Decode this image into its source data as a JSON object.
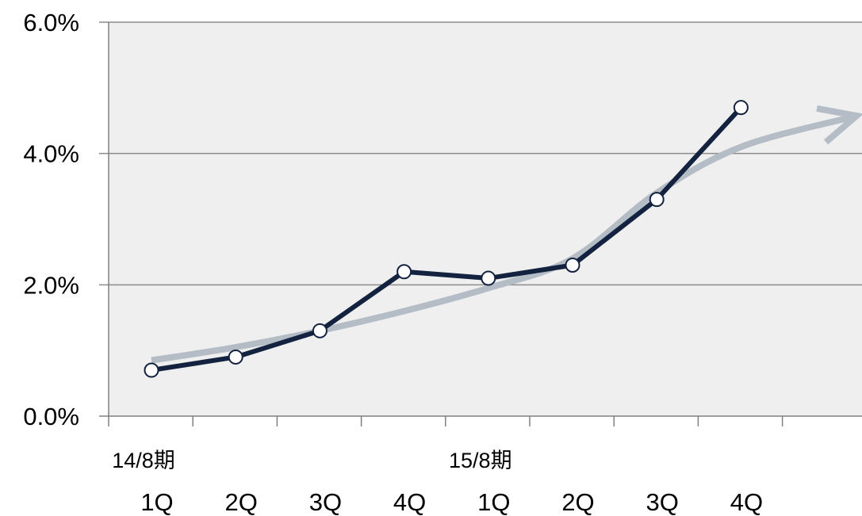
{
  "chart_data": {
    "type": "line",
    "categories": [
      "1Q",
      "2Q",
      "3Q",
      "4Q",
      "1Q",
      "2Q",
      "3Q",
      "4Q"
    ],
    "period_labels": [
      {
        "text": "14/8期",
        "category_index": 0
      },
      {
        "text": "15/8期",
        "category_index": 4
      }
    ],
    "series": [
      {
        "values": [
          0.7,
          0.9,
          1.3,
          2.2,
          2.1,
          2.3,
          3.3,
          4.7
        ]
      }
    ],
    "trend_arrow": {
      "x": [
        0,
        1,
        2,
        3,
        4,
        5,
        6,
        7,
        8.3
      ],
      "y": [
        0.85,
        1.05,
        1.3,
        1.6,
        1.95,
        2.4,
        3.4,
        4.1,
        4.55
      ]
    },
    "yticks": [
      "0.0%",
      "2.0%",
      "4.0%",
      "6.0%"
    ],
    "ytick_values": [
      0,
      2,
      4,
      6
    ],
    "ylim": [
      0,
      6
    ],
    "grid": true,
    "colors": {
      "plot_background": "#efefef",
      "series_line": "#13223f",
      "marker_fill": "#ffffff",
      "trend": "#b4bcc6",
      "gridline": "#8c8c8c",
      "axis": "#808080"
    }
  }
}
